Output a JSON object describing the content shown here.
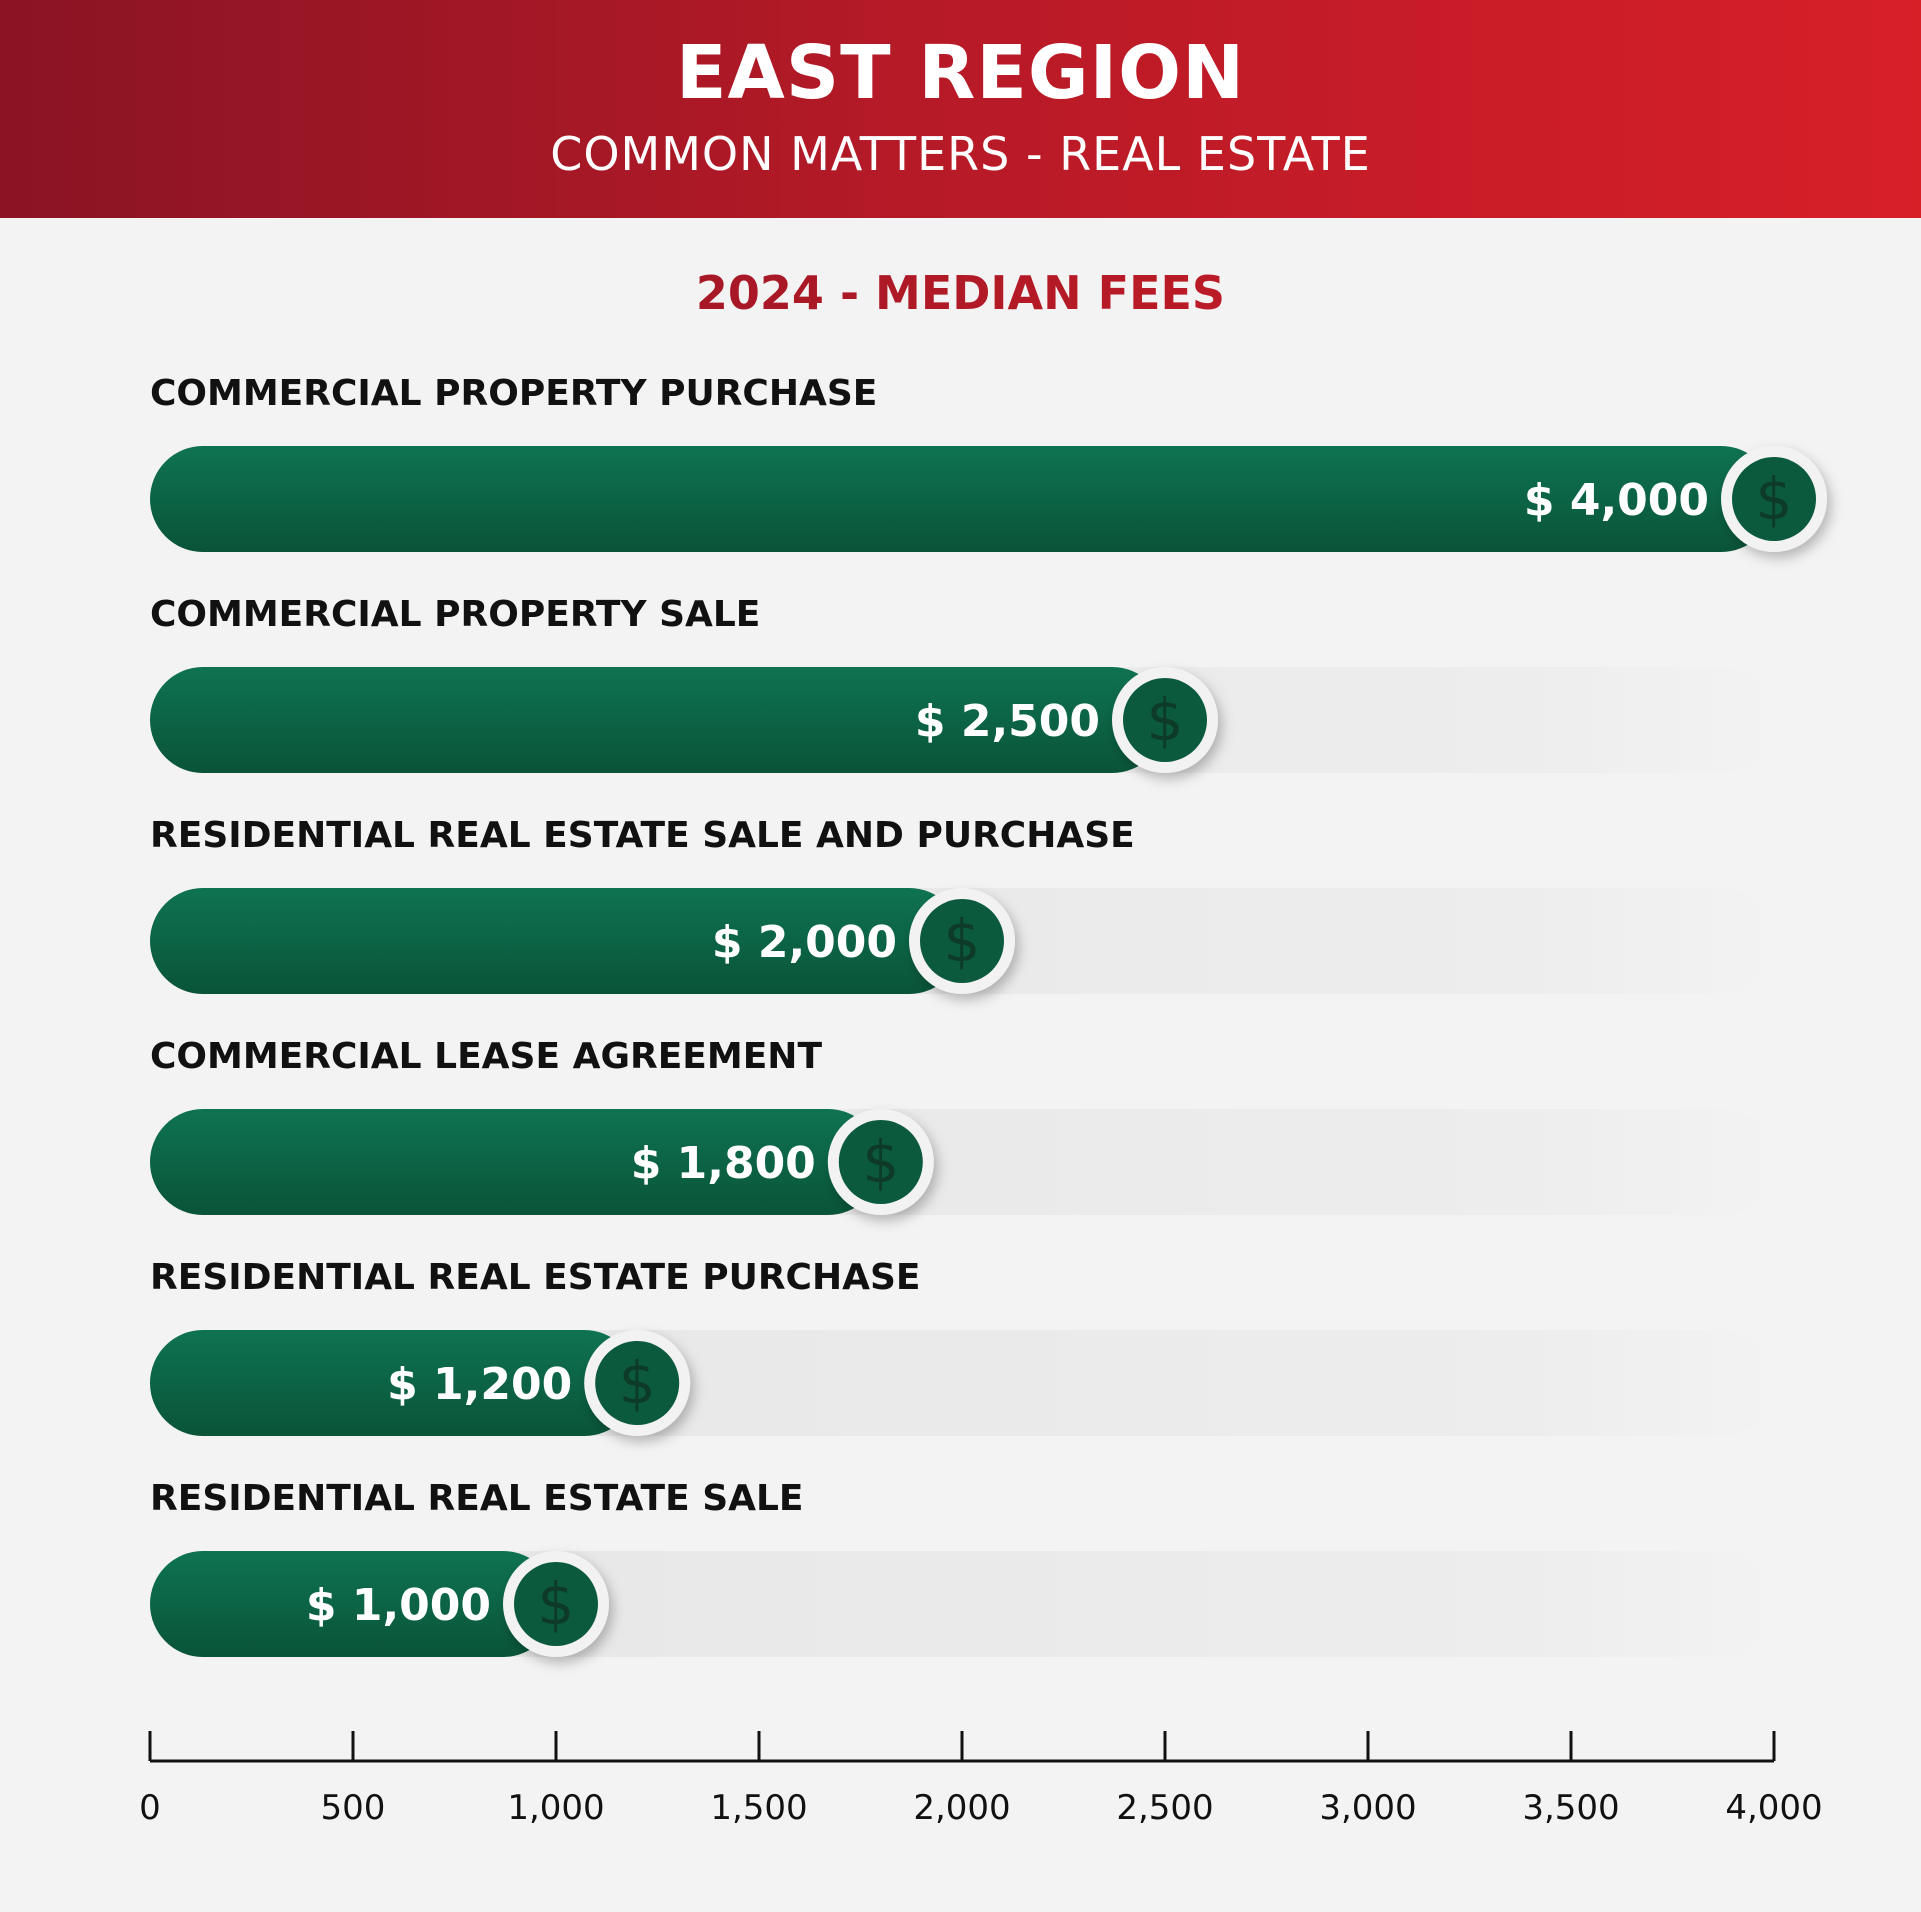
{
  "header": {
    "title": "EAST REGION",
    "subtitle": "COMMON MATTERS - REAL ESTATE"
  },
  "colors": {
    "header_start": "#8a1424",
    "header_end": "#d71f28",
    "bar_dark": "#0b5a3e",
    "bar_light": "#0e7352",
    "track": "#ececec",
    "background": "#f3f3f3"
  },
  "chart_data": {
    "type": "bar",
    "orientation": "horizontal",
    "title": "2024 - MEDIAN FEES",
    "categories": [
      "COMMERCIAL PROPERTY PURCHASE",
      "COMMERCIAL PROPERTY SALE",
      "RESIDENTIAL REAL ESTATE SALE AND PURCHASE",
      "COMMERCIAL LEASE AGREEMENT",
      "RESIDENTIAL REAL ESTATE PURCHASE",
      "RESIDENTIAL REAL ESTATE SALE"
    ],
    "values": [
      4000,
      2500,
      2000,
      1800,
      1200,
      1000
    ],
    "value_labels": [
      "$ 4,000",
      "$ 2,500",
      "$ 2,000",
      "$ 1,800",
      "$ 1,200",
      "$ 1,000"
    ],
    "marker_icon": "dollar-sign-icon",
    "marker_glyph": "$",
    "xlim": [
      0,
      4000
    ],
    "xticks": [
      0,
      500,
      1000,
      1500,
      2000,
      2500,
      3000,
      3500,
      4000
    ],
    "xtick_labels": [
      "0",
      "500",
      "1,000",
      "1,500",
      "2,000",
      "2,500",
      "3,000",
      "3,500",
      "4,000"
    ],
    "grid": false,
    "legend": "none"
  }
}
